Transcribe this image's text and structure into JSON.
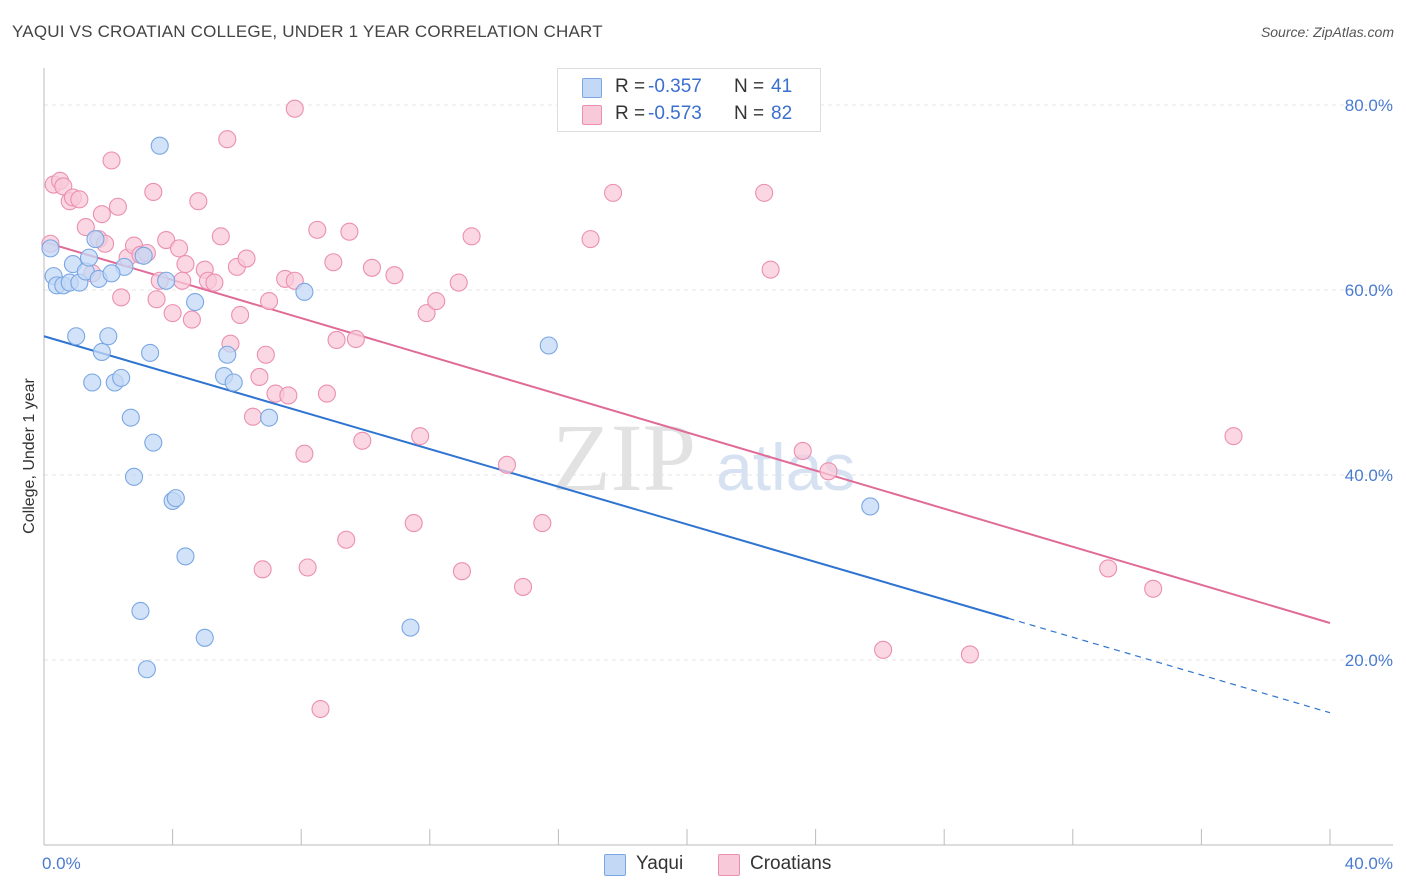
{
  "chart_data": {
    "type": "scatter",
    "title": "YAQUI VS CROATIAN COLLEGE, UNDER 1 YEAR CORRELATION CHART",
    "source": "Source: ZipAtlas.com",
    "xlabel": "",
    "ylabel": "College, Under 1 year",
    "xlim": [
      0,
      40
    ],
    "ylim": [
      0,
      84
    ],
    "x_tick_labels": [
      "0.0%",
      "40.0%"
    ],
    "y_ticks": [
      20,
      40,
      60,
      80
    ],
    "y_tick_labels": [
      "20.0%",
      "40.0%",
      "60.0%",
      "80.0%"
    ],
    "watermark": "ZIPatlas",
    "legend_stats": [
      {
        "r_label": "R =",
        "r": "-0.357",
        "n_label": "N =",
        "n": "41"
      },
      {
        "r_label": "R =",
        "r": "-0.573",
        "n_label": "N =",
        "n": "82"
      }
    ],
    "series": [
      {
        "name": "Yaqui",
        "color": "#7aa7e3",
        "fill": "#c3d8f5",
        "line_color": "#2f74d0",
        "trend": {
          "x0": 0,
          "y0": 55.0,
          "x1": 30,
          "y1": 24.5,
          "dash_to_x": 40,
          "dash_to_y": 14.3
        },
        "points": [
          [
            0.3,
            61.5
          ],
          [
            0.4,
            60.5
          ],
          [
            0.6,
            60.5
          ],
          [
            0.8,
            60.8
          ],
          [
            0.9,
            62.8
          ],
          [
            1.0,
            55.0
          ],
          [
            1.1,
            60.8
          ],
          [
            1.3,
            62.0
          ],
          [
            1.4,
            63.5
          ],
          [
            1.5,
            50.0
          ],
          [
            1.6,
            65.5
          ],
          [
            1.7,
            61.2
          ],
          [
            1.8,
            53.3
          ],
          [
            2.0,
            55.0
          ],
          [
            2.2,
            50.0
          ],
          [
            2.4,
            50.5
          ],
          [
            2.5,
            62.5
          ],
          [
            2.7,
            46.2
          ],
          [
            2.8,
            39.8
          ],
          [
            3.0,
            25.3
          ],
          [
            3.1,
            63.7
          ],
          [
            3.2,
            19.0
          ],
          [
            3.3,
            53.2
          ],
          [
            3.4,
            43.5
          ],
          [
            3.6,
            75.6
          ],
          [
            4.0,
            37.2
          ],
          [
            4.1,
            37.5
          ],
          [
            4.4,
            31.2
          ],
          [
            4.7,
            58.7
          ],
          [
            5.0,
            22.4
          ],
          [
            5.6,
            50.7
          ],
          [
            5.7,
            53.0
          ],
          [
            5.9,
            50.0
          ],
          [
            7.0,
            46.2
          ],
          [
            8.1,
            59.8
          ],
          [
            11.4,
            23.5
          ],
          [
            15.7,
            54.0
          ],
          [
            25.7,
            36.6
          ],
          [
            3.8,
            61.0
          ],
          [
            0.2,
            64.5
          ],
          [
            2.1,
            61.8
          ]
        ]
      },
      {
        "name": "Croatians",
        "color": "#eb8fb0",
        "fill": "#f8c9d9",
        "line_color": "#e06b96",
        "trend": {
          "x0": 0,
          "y0": 65.2,
          "x1": 40,
          "y1": 24.0
        },
        "points": [
          [
            0.2,
            65.0
          ],
          [
            0.3,
            71.4
          ],
          [
            0.5,
            71.8
          ],
          [
            0.6,
            71.2
          ],
          [
            0.8,
            69.6
          ],
          [
            0.9,
            70.0
          ],
          [
            1.1,
            69.8
          ],
          [
            1.3,
            66.8
          ],
          [
            1.5,
            61.8
          ],
          [
            1.7,
            65.5
          ],
          [
            1.8,
            68.2
          ],
          [
            1.9,
            65.0
          ],
          [
            2.1,
            74.0
          ],
          [
            2.3,
            69.0
          ],
          [
            2.4,
            59.2
          ],
          [
            2.6,
            63.5
          ],
          [
            2.8,
            64.8
          ],
          [
            3.0,
            63.8
          ],
          [
            3.2,
            64.0
          ],
          [
            3.4,
            70.6
          ],
          [
            3.5,
            59.0
          ],
          [
            3.6,
            61.0
          ],
          [
            3.8,
            65.4
          ],
          [
            4.0,
            57.5
          ],
          [
            4.2,
            64.5
          ],
          [
            4.3,
            61.0
          ],
          [
            4.4,
            62.8
          ],
          [
            4.6,
            56.8
          ],
          [
            4.8,
            69.6
          ],
          [
            5.0,
            62.2
          ],
          [
            5.1,
            61.0
          ],
          [
            5.3,
            60.8
          ],
          [
            5.5,
            65.8
          ],
          [
            5.7,
            76.3
          ],
          [
            5.8,
            54.2
          ],
          [
            6.0,
            62.5
          ],
          [
            6.1,
            57.3
          ],
          [
            6.3,
            63.4
          ],
          [
            6.5,
            46.3
          ],
          [
            6.7,
            50.6
          ],
          [
            6.8,
            29.8
          ],
          [
            6.9,
            53.0
          ],
          [
            7.0,
            58.8
          ],
          [
            7.2,
            48.8
          ],
          [
            7.5,
            61.2
          ],
          [
            7.6,
            48.6
          ],
          [
            7.8,
            61.0
          ],
          [
            7.8,
            79.6
          ],
          [
            8.1,
            42.3
          ],
          [
            8.2,
            30.0
          ],
          [
            8.5,
            66.5
          ],
          [
            8.6,
            14.7
          ],
          [
            8.8,
            48.8
          ],
          [
            9.0,
            63.0
          ],
          [
            9.1,
            54.6
          ],
          [
            9.4,
            33.0
          ],
          [
            9.5,
            66.3
          ],
          [
            9.7,
            54.7
          ],
          [
            9.9,
            43.7
          ],
          [
            10.2,
            62.4
          ],
          [
            10.9,
            61.6
          ],
          [
            11.5,
            34.8
          ],
          [
            11.7,
            44.2
          ],
          [
            11.9,
            57.5
          ],
          [
            12.2,
            58.8
          ],
          [
            12.9,
            60.8
          ],
          [
            13.0,
            29.6
          ],
          [
            13.3,
            65.8
          ],
          [
            14.4,
            41.1
          ],
          [
            14.9,
            27.9
          ],
          [
            15.5,
            34.8
          ],
          [
            17.0,
            65.5
          ],
          [
            17.7,
            70.5
          ],
          [
            22.4,
            70.5
          ],
          [
            22.6,
            62.2
          ],
          [
            23.6,
            42.6
          ],
          [
            24.4,
            40.4
          ],
          [
            26.1,
            21.1
          ],
          [
            28.8,
            20.6
          ],
          [
            33.1,
            29.9
          ],
          [
            34.5,
            27.7
          ],
          [
            37.0,
            44.2
          ]
        ]
      }
    ]
  }
}
